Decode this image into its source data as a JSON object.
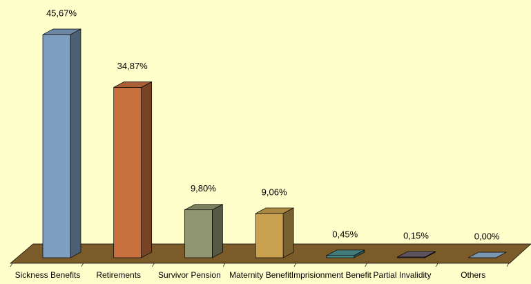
{
  "chart_data": {
    "type": "bar3d",
    "categories": [
      "Sickness Benefits",
      "Retirements",
      "Survivor Pension",
      "Maternity Benefit",
      "Imprisionment Benefit",
      "Partial Invalidity",
      "Others"
    ],
    "values": [
      45.67,
      34.87,
      9.8,
      9.06,
      0.45,
      0.15,
      0.0
    ],
    "value_labels": [
      "45,67%",
      "34,87%",
      "9,80%",
      "9,06%",
      "0,45%",
      "0,15%",
      "0,00%"
    ],
    "colors": [
      "#7f9fc0",
      "#c8703e",
      "#8f9671",
      "#c9a14f",
      "#4f9090",
      "#6e6170",
      "#8fb0cf"
    ],
    "floor_color": "#7b5b2a"
  }
}
